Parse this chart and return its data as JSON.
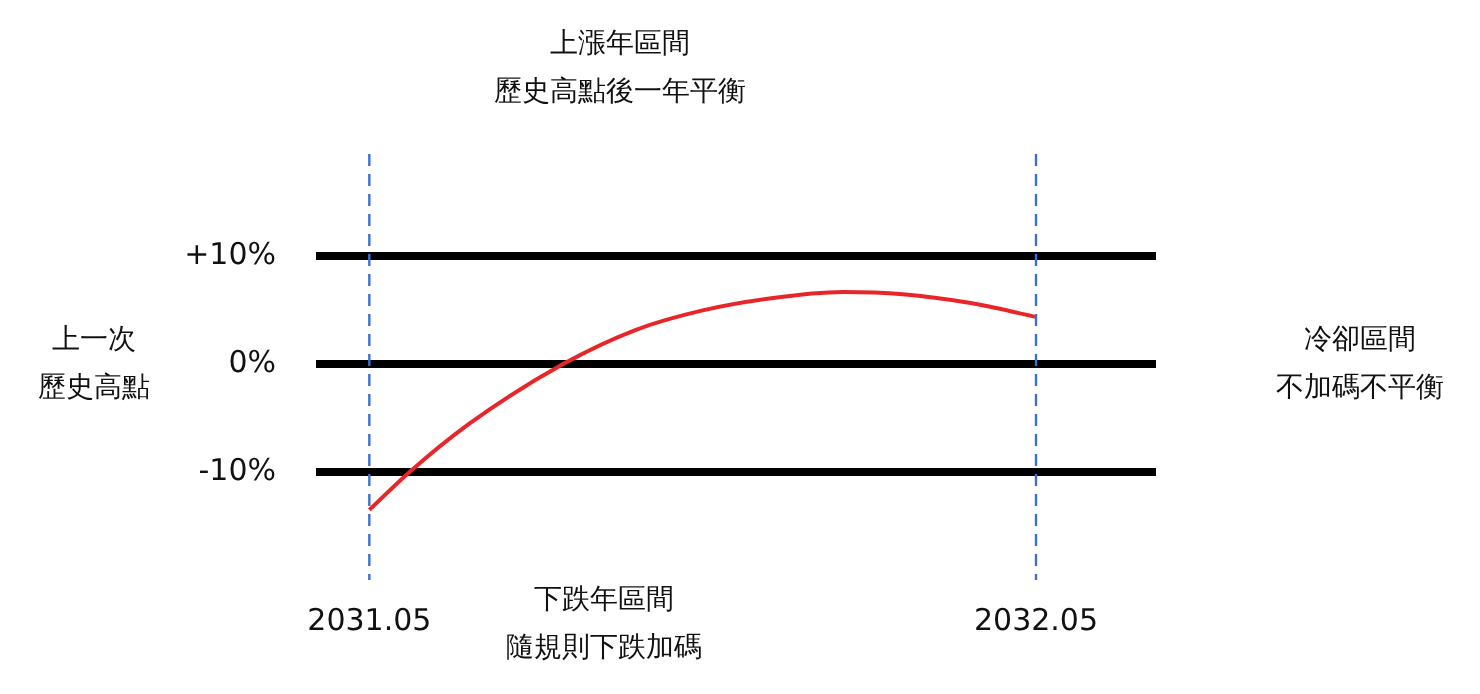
{
  "chart_data": {
    "type": "line",
    "x": [
      2031.05,
      2031.11,
      2031.2,
      2031.34,
      2031.45,
      2031.55,
      2031.65,
      2031.76,
      2031.85,
      2031.95,
      2032.05
    ],
    "series": [
      {
        "color": "#e8262a",
        "values": [
          -13.5,
          -10,
          -5.5,
          0,
          3.2,
          5.0,
          6.1,
          6.7,
          6.5,
          5.7,
          4.4
        ]
      }
    ],
    "xlim": [
      2030.97,
      2032.23
    ],
    "xticks": [
      2031.05,
      2032.05
    ],
    "ylim": [
      -20,
      19.5
    ],
    "yticks": [
      {
        "value": -10,
        "label": "-10%"
      },
      {
        "value": 0,
        "label": "0%"
      },
      {
        "value": 10,
        "label": "+10%"
      }
    ],
    "grid": "y",
    "legend": false,
    "marker": "none",
    "line_style": "solid",
    "ref_lines": [
      {
        "axis": "x",
        "value": 2031.05,
        "color": "#3b6fd6",
        "line_style": "dashed"
      },
      {
        "axis": "x",
        "value": 2032.05,
        "color": "#3b6fd6",
        "line_style": "dashed"
      }
    ],
    "annotations": [
      "上漲年區間",
      "歷史高點後一年平衡",
      "下跌年區間",
      "隨規則下跌加碼",
      "上一次",
      "歷史高點",
      "冷卻區間",
      "不加碼不平衡"
    ]
  }
}
